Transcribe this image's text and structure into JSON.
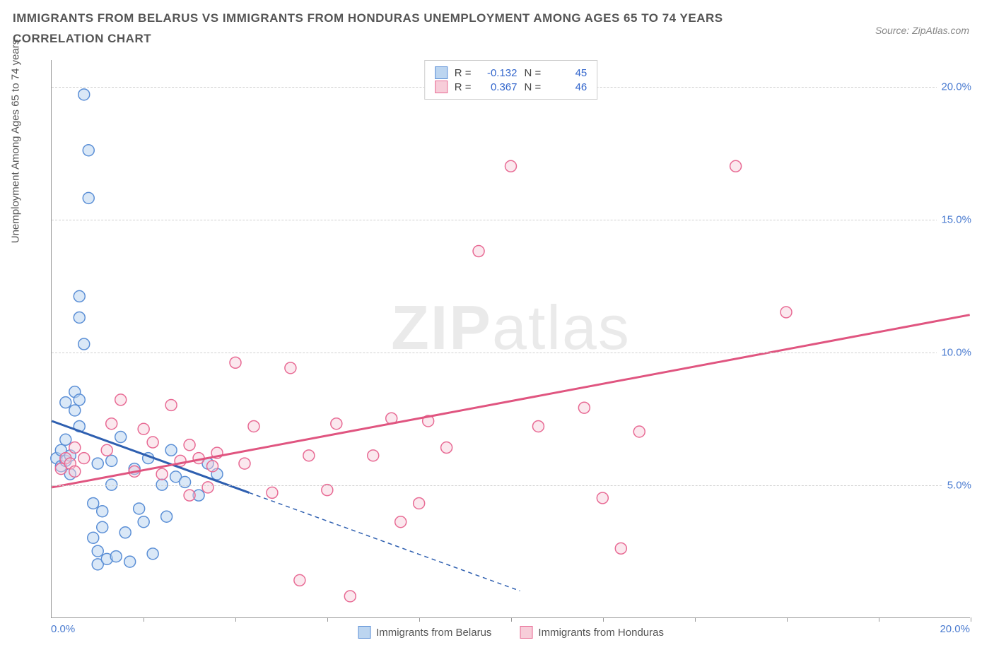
{
  "title": "IMMIGRANTS FROM BELARUS VS IMMIGRANTS FROM HONDURAS UNEMPLOYMENT AMONG AGES 65 TO 74 YEARS CORRELATION CHART",
  "source": "Source: ZipAtlas.com",
  "ylabel": "Unemployment Among Ages 65 to 74 years",
  "watermark_bold": "ZIP",
  "watermark_light": "atlas",
  "colors": {
    "blue_stroke": "#5b8fd6",
    "blue_fill": "#bcd5f0",
    "blue_line": "#2e5fb0",
    "pink_stroke": "#e86a94",
    "pink_fill": "#f7cdd9",
    "pink_line": "#e05580",
    "axis_text": "#4a7bd0",
    "grid": "#d0d0d0",
    "title_color": "#555555"
  },
  "axes": {
    "x_min": 0.0,
    "x_max": 20.0,
    "y_min": 0.0,
    "y_max": 21.0,
    "x_start_label": "0.0%",
    "x_end_label": "20.0%",
    "y_ticks": [
      {
        "v": 5.0,
        "label": "5.0%"
      },
      {
        "v": 10.0,
        "label": "10.0%"
      },
      {
        "v": 15.0,
        "label": "15.0%"
      },
      {
        "v": 20.0,
        "label": "20.0%"
      }
    ],
    "x_tick_positions": [
      2,
      4,
      6,
      8,
      10,
      12,
      14,
      16,
      18,
      20
    ]
  },
  "legend_top": [
    {
      "series": "belarus",
      "R_label": "R =",
      "R": "-0.132",
      "N_label": "N =",
      "N": "45"
    },
    {
      "series": "honduras",
      "R_label": "R =",
      "R": "0.367",
      "N_label": "N =",
      "N": "46"
    }
  ],
  "legend_bottom": [
    {
      "series": "belarus",
      "label": "Immigrants from Belarus"
    },
    {
      "series": "honduras",
      "label": "Immigrants from Honduras"
    }
  ],
  "series": {
    "belarus": {
      "marker_radius": 8,
      "fill_opacity": 0.55,
      "trend_solid": {
        "x1": 0.0,
        "y1": 7.4,
        "x2": 4.3,
        "y2": 4.7
      },
      "trend_dash": {
        "x1": 4.3,
        "y1": 4.7,
        "x2": 10.2,
        "y2": 1.0
      },
      "points": [
        [
          0.1,
          6.0
        ],
        [
          0.2,
          5.7
        ],
        [
          0.2,
          6.3
        ],
        [
          0.3,
          5.9
        ],
        [
          0.3,
          6.7
        ],
        [
          0.3,
          8.1
        ],
        [
          0.4,
          5.4
        ],
        [
          0.4,
          6.1
        ],
        [
          0.5,
          7.8
        ],
        [
          0.5,
          8.5
        ],
        [
          0.6,
          7.2
        ],
        [
          0.6,
          8.2
        ],
        [
          0.6,
          11.3
        ],
        [
          0.6,
          12.1
        ],
        [
          0.7,
          10.3
        ],
        [
          0.7,
          19.7
        ],
        [
          0.8,
          15.8
        ],
        [
          0.8,
          17.6
        ],
        [
          0.9,
          4.3
        ],
        [
          0.9,
          3.0
        ],
        [
          1.0,
          2.0
        ],
        [
          1.0,
          2.5
        ],
        [
          1.0,
          5.8
        ],
        [
          1.1,
          4.0
        ],
        [
          1.1,
          3.4
        ],
        [
          1.2,
          2.2
        ],
        [
          1.3,
          5.0
        ],
        [
          1.3,
          5.9
        ],
        [
          1.4,
          2.3
        ],
        [
          1.5,
          6.8
        ],
        [
          1.6,
          3.2
        ],
        [
          1.7,
          2.1
        ],
        [
          1.8,
          5.6
        ],
        [
          1.9,
          4.1
        ],
        [
          2.0,
          3.6
        ],
        [
          2.1,
          6.0
        ],
        [
          2.2,
          2.4
        ],
        [
          2.4,
          5.0
        ],
        [
          2.5,
          3.8
        ],
        [
          2.6,
          6.3
        ],
        [
          2.7,
          5.3
        ],
        [
          2.9,
          5.1
        ],
        [
          3.2,
          4.6
        ],
        [
          3.4,
          5.8
        ],
        [
          3.6,
          5.4
        ]
      ]
    },
    "honduras": {
      "marker_radius": 8,
      "fill_opacity": 0.45,
      "trend_solid": {
        "x1": 0.0,
        "y1": 4.9,
        "x2": 20.0,
        "y2": 11.4
      },
      "points": [
        [
          0.2,
          5.6
        ],
        [
          0.3,
          6.0
        ],
        [
          0.4,
          5.8
        ],
        [
          0.5,
          5.5
        ],
        [
          0.5,
          6.4
        ],
        [
          0.7,
          6.0
        ],
        [
          1.2,
          6.3
        ],
        [
          1.3,
          7.3
        ],
        [
          1.5,
          8.2
        ],
        [
          1.8,
          5.5
        ],
        [
          2.0,
          7.1
        ],
        [
          2.2,
          6.6
        ],
        [
          2.4,
          5.4
        ],
        [
          2.6,
          8.0
        ],
        [
          2.8,
          5.9
        ],
        [
          3.0,
          6.5
        ],
        [
          3.0,
          4.6
        ],
        [
          3.2,
          6.0
        ],
        [
          3.4,
          4.9
        ],
        [
          3.5,
          5.7
        ],
        [
          3.6,
          6.2
        ],
        [
          4.0,
          9.6
        ],
        [
          4.2,
          5.8
        ],
        [
          4.4,
          7.2
        ],
        [
          4.8,
          4.7
        ],
        [
          5.2,
          9.4
        ],
        [
          5.4,
          1.4
        ],
        [
          5.6,
          6.1
        ],
        [
          6.0,
          4.8
        ],
        [
          6.2,
          7.3
        ],
        [
          6.5,
          0.8
        ],
        [
          7.0,
          6.1
        ],
        [
          7.4,
          7.5
        ],
        [
          7.6,
          3.6
        ],
        [
          8.0,
          4.3
        ],
        [
          8.2,
          7.4
        ],
        [
          8.6,
          6.4
        ],
        [
          9.3,
          13.8
        ],
        [
          10.0,
          17.0
        ],
        [
          10.6,
          7.2
        ],
        [
          11.6,
          7.9
        ],
        [
          12.0,
          4.5
        ],
        [
          12.4,
          2.6
        ],
        [
          14.9,
          17.0
        ],
        [
          16.0,
          11.5
        ],
        [
          12.8,
          7.0
        ]
      ]
    }
  }
}
